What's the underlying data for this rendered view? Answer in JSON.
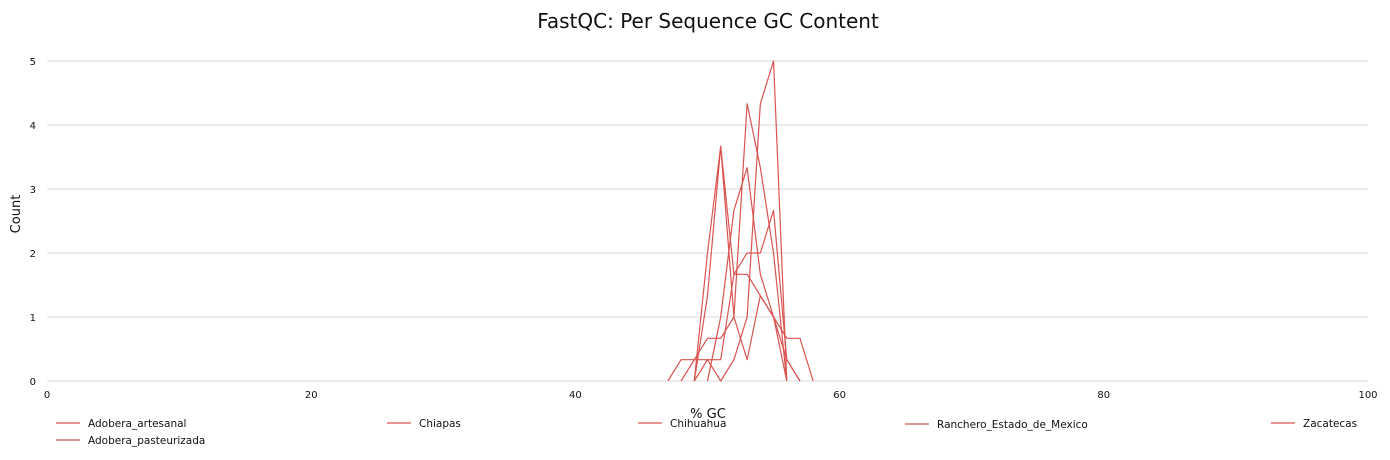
{
  "chart_data": {
    "type": "line",
    "title": "FastQC: Per Sequence GC Content",
    "xlabel": "% GC",
    "ylabel": "Count",
    "xlim": [
      0,
      100
    ],
    "ylim": [
      0,
      5
    ],
    "xticks": [
      0,
      20,
      40,
      60,
      80,
      100
    ],
    "yticks": [
      0,
      1,
      2,
      3,
      4,
      5
    ],
    "grid": "horizontal",
    "legend_position": "bottom",
    "line_color": "#d9534f",
    "series": [
      {
        "name": "Adobera_artesanal",
        "x": [
          49,
          50,
          51,
          52,
          53,
          54,
          55,
          56
        ],
        "y": [
          0,
          2,
          3.667,
          1,
          0.333,
          1.333,
          1,
          0
        ]
      },
      {
        "name": "Adobera_pasteurizada",
        "x": [
          47,
          48,
          49,
          50,
          51,
          52,
          53,
          54,
          55,
          56,
          57,
          58
        ],
        "y": [
          0,
          0.333,
          0.333,
          0.333,
          0.333,
          1.667,
          1.667,
          1.333,
          1,
          0.667,
          0.667,
          0
        ]
      },
      {
        "name": "Chiapas",
        "x": [
          48,
          49,
          50,
          51,
          52,
          53,
          54,
          55,
          56
        ],
        "y": [
          0,
          0.333,
          0.667,
          0.667,
          1,
          4.333,
          3.333,
          2,
          0
        ]
      },
      {
        "name": "Chihuahua",
        "x": [
          49,
          50,
          51,
          52,
          53,
          54,
          55,
          56,
          57
        ],
        "y": [
          0,
          1.333,
          3.667,
          1.667,
          2,
          2,
          2.667,
          0.333,
          0
        ]
      },
      {
        "name": "Ranchero_Estado_de_Mexico",
        "x": [
          49,
          50,
          51,
          52,
          53,
          54,
          55,
          56
        ],
        "y": [
          0,
          0.333,
          0,
          0.333,
          1,
          4.333,
          5,
          0
        ]
      },
      {
        "name": "Zacatecas",
        "x": [
          50,
          51,
          52,
          53,
          54,
          55,
          56,
          57
        ],
        "y": [
          0,
          1,
          2.667,
          3.333,
          1.667,
          1,
          0.333,
          0
        ]
      }
    ]
  }
}
